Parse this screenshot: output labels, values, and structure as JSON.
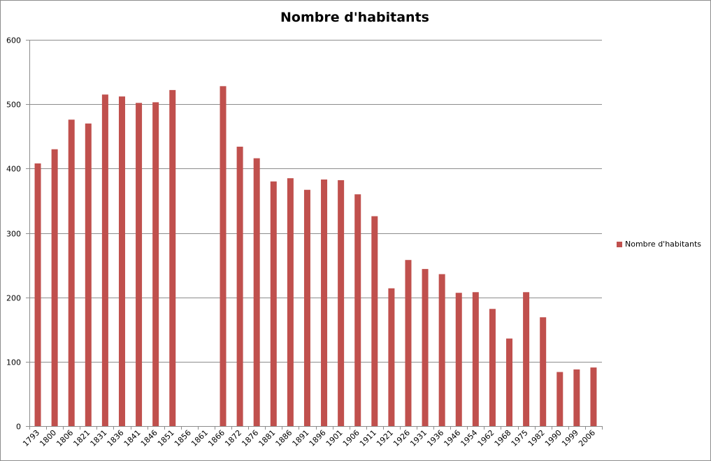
{
  "chart_data": {
    "type": "bar",
    "title": "Nombre d'habitants",
    "xlabel": "",
    "ylabel": "",
    "ylim": [
      0,
      600
    ],
    "yticks": [
      0,
      100,
      200,
      300,
      400,
      500,
      600
    ],
    "grid": true,
    "legend_position": "right",
    "bar_color": "#C0504D",
    "categories": [
      "1793",
      "1800",
      "1806",
      "1821",
      "1831",
      "1836",
      "1841",
      "1846",
      "1851",
      "1856",
      "1861",
      "1866",
      "1872",
      "1876",
      "1881",
      "1886",
      "1891",
      "1896",
      "1901",
      "1906",
      "1911",
      "1921",
      "1926",
      "1931",
      "1936",
      "1946",
      "1954",
      "1962",
      "1968",
      "1975",
      "1982",
      "1990",
      "1999",
      "2006"
    ],
    "series": [
      {
        "name": "Nombre d'habitants",
        "values": [
          408,
          430,
          476,
          470,
          515,
          512,
          502,
          503,
          522,
          null,
          null,
          528,
          434,
          416,
          380,
          385,
          367,
          383,
          382,
          360,
          326,
          214,
          258,
          244,
          236,
          207,
          208,
          182,
          136,
          208,
          169,
          84,
          88,
          91
        ]
      }
    ]
  }
}
